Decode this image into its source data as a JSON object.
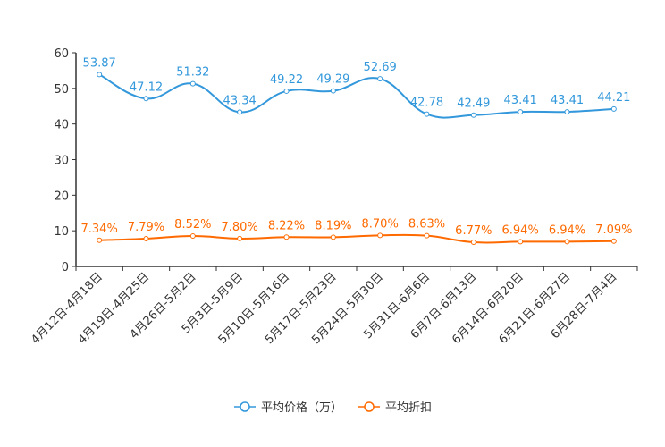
{
  "chart_data": {
    "type": "line",
    "categories": [
      "4月12日-4月18日",
      "4月19日-4月25日",
      "4月26日-5月2日",
      "5月3日-5月9日",
      "5月10日-5月16日",
      "5月17日-5月23日",
      "5月24日-5月30日",
      "5月31日-6月6日",
      "6月7日-6月13日",
      "6月14日-6月20日",
      "6月21日-6月27日",
      "6月28日-7月4日"
    ],
    "series": [
      {
        "name": "平均价格（万）",
        "color": "#3398DB",
        "values": [
          53.87,
          47.12,
          51.32,
          43.34,
          49.22,
          49.29,
          52.69,
          42.78,
          42.49,
          43.41,
          43.41,
          44.21
        ],
        "labels": [
          "53.87",
          "47.12",
          "51.32",
          "43.34",
          "49.22",
          "49.29",
          "52.69",
          "42.78",
          "42.49",
          "43.41",
          "43.41",
          "44.21"
        ]
      },
      {
        "name": "平均折扣",
        "color": "#FF6A00",
        "values": [
          7.34,
          7.79,
          8.52,
          7.8,
          8.22,
          8.19,
          8.7,
          8.63,
          6.77,
          6.94,
          6.94,
          7.09
        ],
        "labels": [
          "7.34%",
          "7.79%",
          "8.52%",
          "7.80%",
          "8.22%",
          "8.19%",
          "8.70%",
          "8.63%",
          "6.77%",
          "6.94%",
          "6.94%",
          "7.09%"
        ]
      }
    ],
    "ylim": [
      0,
      60
    ],
    "yticks": [
      "0",
      "10",
      "20",
      "30",
      "40",
      "50",
      "60"
    ],
    "legend_position": "bottom-center",
    "smooth": true,
    "grid": false
  }
}
